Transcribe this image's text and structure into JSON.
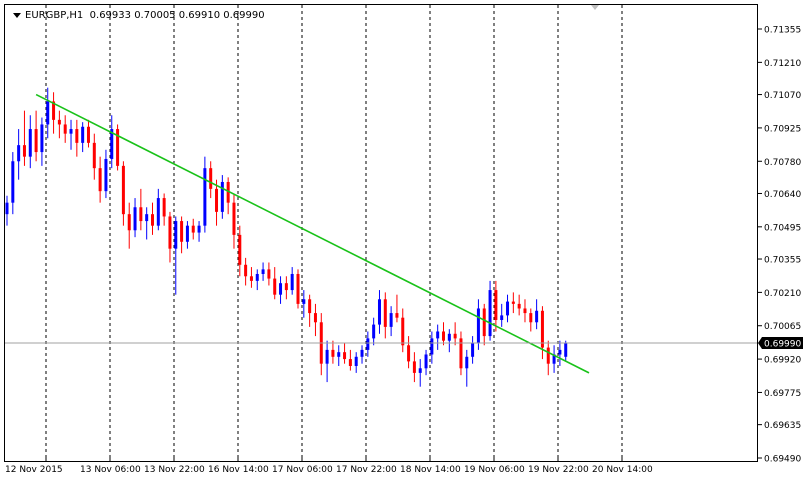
{
  "header": {
    "symbol_tf": "EURGBP,H1",
    "ohlc": "0.69933 0.70005 0.69910 0.69990"
  },
  "colors": {
    "bull": "#0000ff",
    "bear": "#ff0000",
    "trendline": "#19c219",
    "grid": "#000000",
    "current_price_bg": "#000000",
    "current_price_fg": "#ffffff"
  },
  "icons": {
    "dropdown": "triangle-down-icon",
    "scroll_marker": "scroll-marker-icon"
  },
  "chart_data": {
    "type": "candlestick",
    "ylim": [
      0.6949,
      0.71355
    ],
    "y_ticks": [
      "0.71355",
      "0.71210",
      "0.71070",
      "0.70925",
      "0.70780",
      "0.70640",
      "0.70495",
      "0.70355",
      "0.70210",
      "0.70065",
      "0.69920",
      "0.69775",
      "0.69635",
      "0.69490"
    ],
    "current_price": "0.69990",
    "x_labels": [
      "12 Nov 2015",
      "13 Nov 06:00",
      "13 Nov 22:00",
      "16 Nov 14:00",
      "17 Nov 06:00",
      "17 Nov 22:00",
      "18 Nov 14:00",
      "19 Nov 06:00",
      "19 Nov 22:00",
      "20 Nov 14:00"
    ],
    "period_separators": 10,
    "candles": [
      [
        0.7055,
        0.7063,
        0.705,
        0.706
      ],
      [
        0.706,
        0.7082,
        0.7055,
        0.7078
      ],
      [
        0.7078,
        0.7092,
        0.707,
        0.7085
      ],
      [
        0.7085,
        0.71,
        0.7076,
        0.708
      ],
      [
        0.708,
        0.7098,
        0.7075,
        0.7092
      ],
      [
        0.7092,
        0.71,
        0.7078,
        0.7082
      ],
      [
        0.7082,
        0.7097,
        0.7076,
        0.7094
      ],
      [
        0.7094,
        0.711,
        0.7088,
        0.7104
      ],
      [
        0.7104,
        0.7108,
        0.709,
        0.7096
      ],
      [
        0.7096,
        0.71,
        0.7088,
        0.7094
      ],
      [
        0.7094,
        0.7098,
        0.7086,
        0.709
      ],
      [
        0.709,
        0.7096,
        0.7083,
        0.7092
      ],
      [
        0.7092,
        0.7096,
        0.708,
        0.7086
      ],
      [
        0.7086,
        0.7095,
        0.7082,
        0.7093
      ],
      [
        0.7093,
        0.7096,
        0.7084,
        0.7086
      ],
      [
        0.7086,
        0.709,
        0.707,
        0.7075
      ],
      [
        0.7075,
        0.708,
        0.706,
        0.7065
      ],
      [
        0.7065,
        0.7083,
        0.7062,
        0.7079
      ],
      [
        0.7079,
        0.7098,
        0.7075,
        0.7092
      ],
      [
        0.7092,
        0.7094,
        0.7074,
        0.7076
      ],
      [
        0.7076,
        0.7078,
        0.705,
        0.7055
      ],
      [
        0.7055,
        0.706,
        0.704,
        0.7048
      ],
      [
        0.7048,
        0.7062,
        0.7045,
        0.7058
      ],
      [
        0.7058,
        0.7066,
        0.7048,
        0.7052
      ],
      [
        0.7052,
        0.7058,
        0.7044,
        0.7055
      ],
      [
        0.7055,
        0.706,
        0.7046,
        0.705
      ],
      [
        0.705,
        0.7066,
        0.7048,
        0.7062
      ],
      [
        0.7062,
        0.7064,
        0.705,
        0.7054
      ],
      [
        0.7054,
        0.7056,
        0.7034,
        0.704
      ],
      [
        0.704,
        0.7054,
        0.702,
        0.7052
      ],
      [
        0.7052,
        0.7054,
        0.7038,
        0.7043
      ],
      [
        0.7043,
        0.7052,
        0.704,
        0.705
      ],
      [
        0.705,
        0.7053,
        0.7044,
        0.7047
      ],
      [
        0.7047,
        0.7052,
        0.7043,
        0.705
      ],
      [
        0.705,
        0.708,
        0.7047,
        0.7075
      ],
      [
        0.7075,
        0.7078,
        0.7062,
        0.7066
      ],
      [
        0.7066,
        0.707,
        0.705,
        0.7056
      ],
      [
        0.7056,
        0.7072,
        0.7053,
        0.7069
      ],
      [
        0.7069,
        0.7071,
        0.7055,
        0.706
      ],
      [
        0.706,
        0.7064,
        0.704,
        0.7046
      ],
      [
        0.7046,
        0.705,
        0.7028,
        0.7033
      ],
      [
        0.7033,
        0.7036,
        0.7024,
        0.7028
      ],
      [
        0.7028,
        0.7032,
        0.7023,
        0.7026
      ],
      [
        0.7026,
        0.7031,
        0.7022,
        0.7029
      ],
      [
        0.7029,
        0.7034,
        0.7026,
        0.7031
      ],
      [
        0.7031,
        0.7034,
        0.7024,
        0.7027
      ],
      [
        0.7027,
        0.7032,
        0.7018,
        0.702
      ],
      [
        0.702,
        0.7028,
        0.7016,
        0.7025
      ],
      [
        0.7025,
        0.7028,
        0.7018,
        0.7022
      ],
      [
        0.7022,
        0.7032,
        0.702,
        0.7029
      ],
      [
        0.7029,
        0.7031,
        0.7014,
        0.7016
      ],
      [
        0.7016,
        0.7022,
        0.701,
        0.7018
      ],
      [
        0.7018,
        0.702,
        0.7006,
        0.7012
      ],
      [
        0.7012,
        0.7016,
        0.7002,
        0.7008
      ],
      [
        0.7008,
        0.7012,
        0.6985,
        0.699
      ],
      [
        0.699,
        0.7,
        0.6982,
        0.6996
      ],
      [
        0.6996,
        0.7,
        0.699,
        0.6993
      ],
      [
        0.6993,
        0.6998,
        0.6989,
        0.6995
      ],
      [
        0.6995,
        0.6999,
        0.699,
        0.6992
      ],
      [
        0.6992,
        0.6996,
        0.6987,
        0.6989
      ],
      [
        0.6989,
        0.6995,
        0.6986,
        0.6993
      ],
      [
        0.6993,
        0.6998,
        0.699,
        0.6996
      ],
      [
        0.6996,
        0.7004,
        0.6993,
        0.7001
      ],
      [
        0.7001,
        0.701,
        0.6998,
        0.7007
      ],
      [
        0.7007,
        0.7022,
        0.7003,
        0.7018
      ],
      [
        0.7018,
        0.7021,
        0.7001,
        0.7006
      ],
      [
        0.7006,
        0.7015,
        0.7002,
        0.7012
      ],
      [
        0.7012,
        0.702,
        0.7008,
        0.701
      ],
      [
        0.701,
        0.7014,
        0.6995,
        0.6998
      ],
      [
        0.6998,
        0.7002,
        0.6988,
        0.6991
      ],
      [
        0.6991,
        0.6995,
        0.6982,
        0.6986
      ],
      [
        0.6986,
        0.6992,
        0.698,
        0.6988
      ],
      [
        0.6988,
        0.6996,
        0.6985,
        0.6994
      ],
      [
        0.6994,
        0.7004,
        0.699,
        0.7001
      ],
      [
        0.7001,
        0.7007,
        0.6996,
        0.7004
      ],
      [
        0.7004,
        0.7008,
        0.6998,
        0.7
      ],
      [
        0.7,
        0.7005,
        0.6995,
        0.7003
      ],
      [
        0.7003,
        0.7008,
        0.6998,
        0.7001
      ],
      [
        0.7001,
        0.7004,
        0.6985,
        0.6988
      ],
      [
        0.6988,
        0.6996,
        0.698,
        0.6993
      ],
      [
        0.6993,
        0.7002,
        0.699,
        0.6999
      ],
      [
        0.6999,
        0.7018,
        0.6996,
        0.7014
      ],
      [
        0.7014,
        0.7016,
        0.6998,
        0.7002
      ],
      [
        0.7002,
        0.7026,
        0.7,
        0.7022
      ],
      [
        0.7022,
        0.7026,
        0.7004,
        0.7009
      ],
      [
        0.7009,
        0.7016,
        0.7006,
        0.7011
      ],
      [
        0.7011,
        0.702,
        0.7008,
        0.7017
      ],
      [
        0.7017,
        0.7021,
        0.7012,
        0.7016
      ],
      [
        0.7016,
        0.702,
        0.7011,
        0.7014
      ],
      [
        0.7014,
        0.7018,
        0.7008,
        0.7012
      ],
      [
        0.7012,
        0.7014,
        0.7004,
        0.7008
      ],
      [
        0.7008,
        0.7018,
        0.7005,
        0.7013
      ],
      [
        0.7013,
        0.7015,
        0.6992,
        0.6997
      ],
      [
        0.6997,
        0.7,
        0.6985,
        0.699
      ],
      [
        0.699,
        0.6998,
        0.6986,
        0.6994
      ],
      [
        0.6994,
        0.7,
        0.6989,
        0.6996
      ],
      [
        0.6993,
        0.7,
        0.6991,
        0.6999
      ]
    ],
    "trendline": {
      "start": [
        5,
        0.7107
      ],
      "end": [
        100,
        0.6986
      ]
    }
  }
}
